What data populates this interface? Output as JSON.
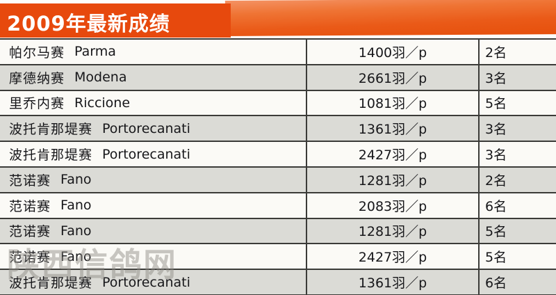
{
  "header": {
    "title": "2009年最新成绩"
  },
  "watermark": {
    "text": "陕西信鸽网"
  },
  "table": {
    "rows": [
      {
        "race_cn": "帕尔马赛",
        "race_en": "Parma",
        "birds": "1400羽／p",
        "rank": "2名"
      },
      {
        "race_cn": "摩德纳赛",
        "race_en": "Modena",
        "birds": "2661羽／p",
        "rank": "3名"
      },
      {
        "race_cn": "里乔内赛",
        "race_en": "Riccione",
        "birds": "1081羽／p",
        "rank": "5名"
      },
      {
        "race_cn": "波托肯那堤赛",
        "race_en": "Portorecanati",
        "birds": "1361羽／p",
        "rank": "3名"
      },
      {
        "race_cn": "波托肯那堤赛",
        "race_en": "Portorecanati",
        "birds": "2427羽／p",
        "rank": "3名"
      },
      {
        "race_cn": "范诺赛",
        "race_en": "Fano",
        "birds": "1281羽／p",
        "rank": "2名"
      },
      {
        "race_cn": "范诺赛",
        "race_en": "Fano",
        "birds": "2083羽／p",
        "rank": "6名"
      },
      {
        "race_cn": "范诺赛",
        "race_en": "Fano",
        "birds": "1281羽／p",
        "rank": "5名"
      },
      {
        "race_cn": "范诺赛",
        "race_en": "Fano",
        "birds": "2427羽／p",
        "rank": "5名"
      },
      {
        "race_cn": "波托肯那堤赛",
        "race_en": "Portorecanati",
        "birds": "1361羽／p",
        "rank": "6名"
      }
    ]
  },
  "colors": {
    "header_orange": "#e7490d",
    "band_orange_light": "#f49263",
    "band_orange_dark": "#e6500c",
    "row_white": "#fbfaf6",
    "row_gray": "#dbdbd6",
    "grid_line": "#3b3b38",
    "watermark_gray": "#8f8c86"
  }
}
